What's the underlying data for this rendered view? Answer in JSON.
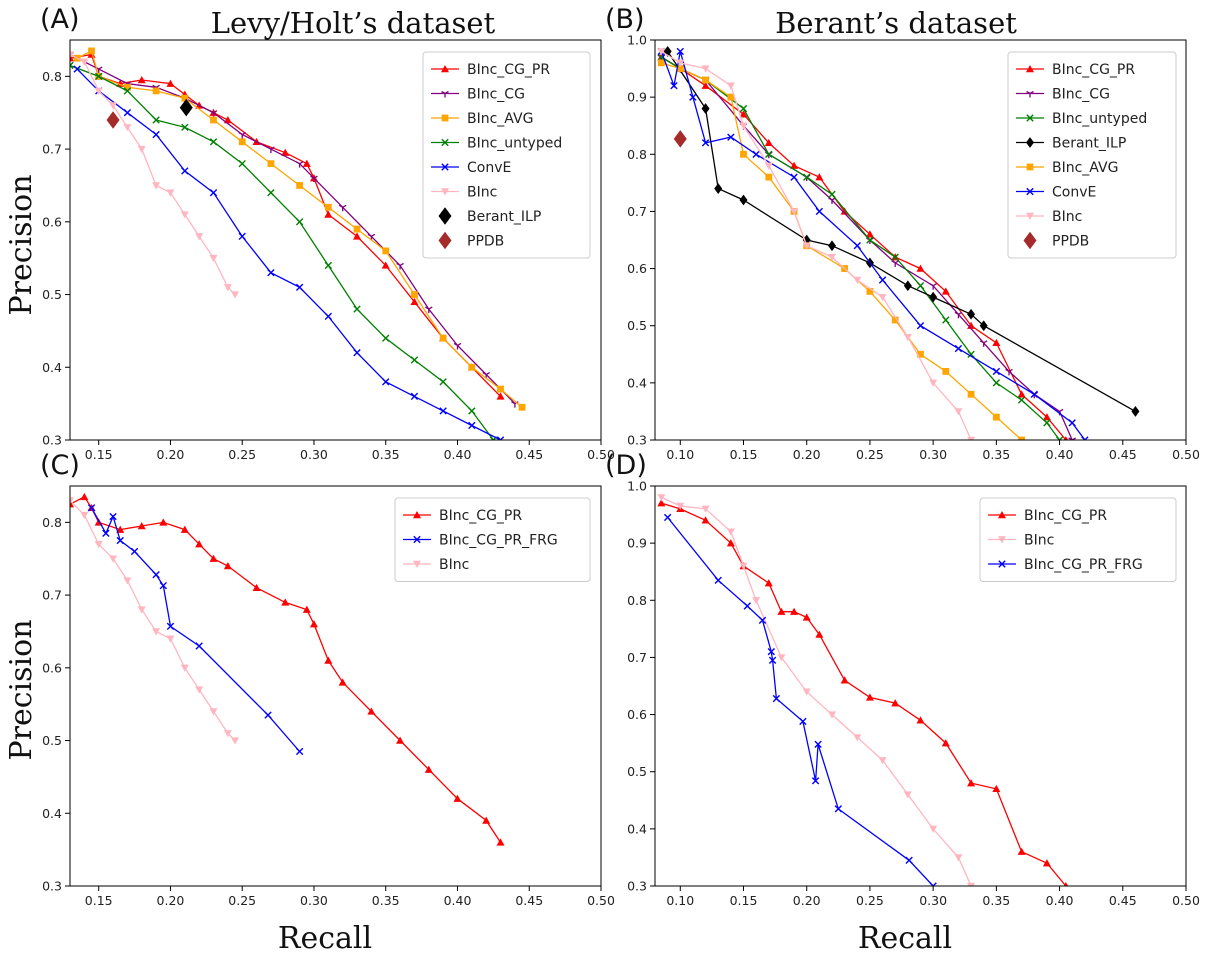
{
  "figure": {
    "panel_labels": [
      "(A)",
      "(B)",
      "(C)",
      "(D)"
    ],
    "column_titles": [
      "Levy/Holt’s dataset",
      "Berant’s dataset"
    ],
    "xlabel": "Recall",
    "ylabel": "Precision"
  },
  "chart_data": [
    {
      "type": "line",
      "panel": "A",
      "title": "Levy/Holt’s dataset",
      "xlabel": "",
      "ylabel": "Precision",
      "xlim": [
        0.13,
        0.5
      ],
      "ylim": [
        0.3,
        0.85
      ],
      "xticks": [
        "0.15",
        "0.20",
        "0.25",
        "0.30",
        "0.35",
        "0.40",
        "0.45",
        "0.50"
      ],
      "yticks": [
        "0.3",
        "0.4",
        "0.5",
        "0.6",
        "0.7",
        "0.8"
      ],
      "legend_position": "top-right",
      "series": [
        {
          "name": "BInc_CG_PR",
          "color": "#ff0000",
          "marker": "triangle-up",
          "x": [
            0.13,
            0.145,
            0.15,
            0.165,
            0.18,
            0.2,
            0.21,
            0.22,
            0.23,
            0.24,
            0.26,
            0.28,
            0.295,
            0.3,
            0.31,
            0.33,
            0.35,
            0.37,
            0.39,
            0.41,
            0.43
          ],
          "y": [
            0.825,
            0.83,
            0.8,
            0.79,
            0.795,
            0.79,
            0.775,
            0.76,
            0.75,
            0.74,
            0.71,
            0.695,
            0.68,
            0.66,
            0.61,
            0.58,
            0.54,
            0.49,
            0.44,
            0.4,
            0.36
          ]
        },
        {
          "name": "BInc_CG",
          "color": "#800080",
          "marker": "tri-down",
          "x": [
            0.13,
            0.15,
            0.17,
            0.19,
            0.21,
            0.23,
            0.25,
            0.27,
            0.29,
            0.3,
            0.32,
            0.34,
            0.36,
            0.38,
            0.4,
            0.42,
            0.44
          ],
          "y": [
            0.83,
            0.81,
            0.79,
            0.785,
            0.77,
            0.75,
            0.72,
            0.7,
            0.68,
            0.66,
            0.62,
            0.58,
            0.54,
            0.48,
            0.43,
            0.39,
            0.35
          ]
        },
        {
          "name": "BInc_AVG",
          "color": "#ffa500",
          "marker": "square",
          "x": [
            0.135,
            0.145,
            0.15,
            0.17,
            0.19,
            0.21,
            0.23,
            0.25,
            0.27,
            0.29,
            0.31,
            0.33,
            0.35,
            0.37,
            0.39,
            0.41,
            0.43,
            0.445
          ],
          "y": [
            0.825,
            0.835,
            0.8,
            0.785,
            0.78,
            0.77,
            0.74,
            0.71,
            0.68,
            0.65,
            0.62,
            0.59,
            0.56,
            0.5,
            0.44,
            0.4,
            0.37,
            0.345
          ]
        },
        {
          "name": "BInc_untyped",
          "color": "#008000",
          "marker": "x",
          "x": [
            0.13,
            0.15,
            0.17,
            0.19,
            0.21,
            0.23,
            0.25,
            0.27,
            0.29,
            0.31,
            0.33,
            0.35,
            0.37,
            0.39,
            0.41,
            0.425
          ],
          "y": [
            0.815,
            0.8,
            0.78,
            0.74,
            0.73,
            0.71,
            0.68,
            0.64,
            0.6,
            0.54,
            0.48,
            0.44,
            0.41,
            0.38,
            0.34,
            0.3
          ]
        },
        {
          "name": "ConvE",
          "color": "#0000ff",
          "marker": "x",
          "x": [
            0.135,
            0.15,
            0.17,
            0.19,
            0.21,
            0.23,
            0.25,
            0.27,
            0.29,
            0.31,
            0.33,
            0.35,
            0.37,
            0.39,
            0.41,
            0.43
          ],
          "y": [
            0.81,
            0.78,
            0.75,
            0.72,
            0.67,
            0.64,
            0.58,
            0.53,
            0.51,
            0.47,
            0.42,
            0.38,
            0.36,
            0.34,
            0.32,
            0.3
          ]
        },
        {
          "name": "BInc",
          "color": "#ffb6c1",
          "marker": "triangle-down",
          "x": [
            0.13,
            0.14,
            0.15,
            0.16,
            0.17,
            0.18,
            0.19,
            0.2,
            0.21,
            0.22,
            0.23,
            0.24,
            0.245
          ],
          "y": [
            0.83,
            0.82,
            0.78,
            0.76,
            0.73,
            0.7,
            0.65,
            0.64,
            0.61,
            0.58,
            0.55,
            0.51,
            0.5
          ]
        },
        {
          "name": "Berant_ILP",
          "color": "#000000",
          "marker": "diamond",
          "x": [
            0.211
          ],
          "y": [
            0.757
          ]
        },
        {
          "name": "PPDB",
          "color": "#a52a2a",
          "marker": "diamond",
          "x": [
            0.16
          ],
          "y": [
            0.74
          ]
        }
      ]
    },
    {
      "type": "line",
      "panel": "B",
      "title": "Berant’s dataset",
      "xlabel": "",
      "ylabel": "",
      "xlim": [
        0.08,
        0.5
      ],
      "ylim": [
        0.3,
        1.0
      ],
      "xticks": [
        "0.10",
        "0.15",
        "0.20",
        "0.25",
        "0.30",
        "0.35",
        "0.40",
        "0.45",
        "0.50"
      ],
      "yticks": [
        "0.3",
        "0.4",
        "0.5",
        "0.6",
        "0.7",
        "0.8",
        "0.9",
        "1.0"
      ],
      "legend_position": "top-right",
      "series": [
        {
          "name": "BInc_CG_PR",
          "color": "#ff0000",
          "marker": "triangle-up",
          "x": [
            0.085,
            0.1,
            0.12,
            0.15,
            0.17,
            0.19,
            0.21,
            0.23,
            0.25,
            0.27,
            0.29,
            0.31,
            0.33,
            0.35,
            0.37,
            0.39,
            0.405
          ],
          "y": [
            0.97,
            0.95,
            0.92,
            0.87,
            0.82,
            0.78,
            0.76,
            0.7,
            0.66,
            0.62,
            0.6,
            0.56,
            0.5,
            0.47,
            0.38,
            0.34,
            0.3
          ]
        },
        {
          "name": "BInc_CG",
          "color": "#800080",
          "marker": "tri-down",
          "x": [
            0.085,
            0.1,
            0.12,
            0.15,
            0.17,
            0.2,
            0.22,
            0.25,
            0.27,
            0.3,
            0.32,
            0.34,
            0.36,
            0.38,
            0.4,
            0.41
          ],
          "y": [
            0.97,
            0.95,
            0.93,
            0.85,
            0.8,
            0.76,
            0.72,
            0.65,
            0.61,
            0.57,
            0.52,
            0.47,
            0.42,
            0.38,
            0.35,
            0.3
          ]
        },
        {
          "name": "BInc_untyped",
          "color": "#008000",
          "marker": "x",
          "x": [
            0.085,
            0.1,
            0.12,
            0.15,
            0.17,
            0.2,
            0.22,
            0.25,
            0.27,
            0.29,
            0.31,
            0.33,
            0.35,
            0.37,
            0.39,
            0.4
          ],
          "y": [
            0.97,
            0.95,
            0.93,
            0.88,
            0.8,
            0.76,
            0.73,
            0.65,
            0.62,
            0.57,
            0.51,
            0.45,
            0.4,
            0.37,
            0.33,
            0.3
          ]
        },
        {
          "name": "Berant_ILP",
          "color": "#000000",
          "marker": "diamond",
          "x": [
            0.09,
            0.12,
            0.13,
            0.15,
            0.2,
            0.22,
            0.25,
            0.28,
            0.3,
            0.33,
            0.34,
            0.46
          ],
          "y": [
            0.98,
            0.88,
            0.74,
            0.72,
            0.65,
            0.64,
            0.61,
            0.57,
            0.55,
            0.52,
            0.5,
            0.35
          ]
        },
        {
          "name": "BInc_AVG",
          "color": "#ffa500",
          "marker": "square",
          "x": [
            0.085,
            0.1,
            0.12,
            0.14,
            0.15,
            0.17,
            0.19,
            0.2,
            0.23,
            0.25,
            0.27,
            0.29,
            0.31,
            0.33,
            0.35,
            0.37
          ],
          "y": [
            0.96,
            0.95,
            0.93,
            0.9,
            0.8,
            0.76,
            0.7,
            0.64,
            0.6,
            0.56,
            0.51,
            0.45,
            0.42,
            0.38,
            0.34,
            0.3
          ]
        },
        {
          "name": "ConvE",
          "color": "#0000ff",
          "marker": "x",
          "x": [
            0.085,
            0.095,
            0.1,
            0.11,
            0.12,
            0.14,
            0.16,
            0.19,
            0.21,
            0.24,
            0.26,
            0.29,
            0.32,
            0.35,
            0.38,
            0.41,
            0.42
          ],
          "y": [
            0.98,
            0.92,
            0.98,
            0.9,
            0.82,
            0.83,
            0.8,
            0.76,
            0.7,
            0.64,
            0.58,
            0.5,
            0.46,
            0.42,
            0.38,
            0.33,
            0.3
          ]
        },
        {
          "name": "BInc",
          "color": "#ffb6c1",
          "marker": "triangle-down",
          "x": [
            0.085,
            0.1,
            0.12,
            0.14,
            0.15,
            0.17,
            0.19,
            0.2,
            0.22,
            0.24,
            0.26,
            0.28,
            0.3,
            0.32,
            0.33
          ],
          "y": [
            0.98,
            0.96,
            0.95,
            0.92,
            0.85,
            0.78,
            0.7,
            0.64,
            0.62,
            0.58,
            0.55,
            0.48,
            0.4,
            0.35,
            0.3
          ]
        },
        {
          "name": "PPDB",
          "color": "#a52a2a",
          "marker": "diamond",
          "x": [
            0.1
          ],
          "y": [
            0.827
          ]
        }
      ]
    },
    {
      "type": "line",
      "panel": "C",
      "title": "",
      "xlabel": "Recall",
      "ylabel": "Precision",
      "xlim": [
        0.13,
        0.5
      ],
      "ylim": [
        0.3,
        0.85
      ],
      "xticks": [
        "0.15",
        "0.20",
        "0.25",
        "0.30",
        "0.35",
        "0.40",
        "0.45",
        "0.50"
      ],
      "yticks": [
        "0.3",
        "0.4",
        "0.5",
        "0.6",
        "0.7",
        "0.8"
      ],
      "legend_position": "top-right",
      "series": [
        {
          "name": "BInc_CG_PR",
          "color": "#ff0000",
          "marker": "triangle-up",
          "x": [
            0.13,
            0.14,
            0.145,
            0.15,
            0.165,
            0.18,
            0.195,
            0.21,
            0.22,
            0.23,
            0.24,
            0.26,
            0.28,
            0.295,
            0.3,
            0.31,
            0.32,
            0.34,
            0.36,
            0.38,
            0.4,
            0.42,
            0.43
          ],
          "y": [
            0.825,
            0.835,
            0.82,
            0.8,
            0.79,
            0.795,
            0.8,
            0.79,
            0.77,
            0.75,
            0.74,
            0.71,
            0.69,
            0.68,
            0.66,
            0.61,
            0.58,
            0.54,
            0.5,
            0.46,
            0.42,
            0.39,
            0.36
          ]
        },
        {
          "name": "BInc_CG_PR_FRG",
          "color": "#0000ff",
          "marker": "x",
          "x": [
            0.145,
            0.155,
            0.16,
            0.165,
            0.175,
            0.19,
            0.195,
            0.2,
            0.22,
            0.268,
            0.29
          ],
          "y": [
            0.82,
            0.785,
            0.808,
            0.775,
            0.76,
            0.728,
            0.713,
            0.657,
            0.63,
            0.535,
            0.485
          ]
        },
        {
          "name": "BInc",
          "color": "#ffb6c1",
          "marker": "triangle-down",
          "x": [
            0.13,
            0.14,
            0.15,
            0.16,
            0.17,
            0.18,
            0.19,
            0.2,
            0.21,
            0.22,
            0.23,
            0.24,
            0.245
          ],
          "y": [
            0.83,
            0.81,
            0.77,
            0.75,
            0.72,
            0.68,
            0.65,
            0.64,
            0.6,
            0.57,
            0.54,
            0.51,
            0.5
          ]
        }
      ]
    },
    {
      "type": "line",
      "panel": "D",
      "title": "",
      "xlabel": "Recall",
      "ylabel": "",
      "xlim": [
        0.08,
        0.5
      ],
      "ylim": [
        0.3,
        1.0
      ],
      "xticks": [
        "0.10",
        "0.15",
        "0.20",
        "0.25",
        "0.30",
        "0.35",
        "0.40",
        "0.45",
        "0.50"
      ],
      "yticks": [
        "0.3",
        "0.4",
        "0.5",
        "0.6",
        "0.7",
        "0.8",
        "0.9",
        "1.0"
      ],
      "legend_position": "top-right",
      "series": [
        {
          "name": "BInc_CG_PR",
          "color": "#ff0000",
          "marker": "triangle-up",
          "x": [
            0.085,
            0.1,
            0.12,
            0.14,
            0.15,
            0.17,
            0.18,
            0.19,
            0.2,
            0.21,
            0.23,
            0.25,
            0.27,
            0.29,
            0.31,
            0.33,
            0.35,
            0.37,
            0.39,
            0.405
          ],
          "y": [
            0.97,
            0.96,
            0.94,
            0.9,
            0.86,
            0.83,
            0.78,
            0.78,
            0.77,
            0.74,
            0.66,
            0.63,
            0.62,
            0.59,
            0.55,
            0.48,
            0.47,
            0.36,
            0.34,
            0.3
          ]
        },
        {
          "name": "BInc",
          "color": "#ffb6c1",
          "marker": "triangle-down",
          "x": [
            0.085,
            0.1,
            0.12,
            0.14,
            0.15,
            0.16,
            0.18,
            0.2,
            0.22,
            0.24,
            0.26,
            0.28,
            0.3,
            0.32,
            0.33
          ],
          "y": [
            0.98,
            0.965,
            0.96,
            0.92,
            0.86,
            0.8,
            0.7,
            0.64,
            0.6,
            0.56,
            0.52,
            0.46,
            0.4,
            0.35,
            0.3
          ]
        },
        {
          "name": "BInc_CG_PR_FRG",
          "color": "#0000ff",
          "marker": "x",
          "x": [
            0.09,
            0.13,
            0.153,
            0.165,
            0.172,
            0.173,
            0.176,
            0.197,
            0.207,
            0.209,
            0.225,
            0.281,
            0.3
          ],
          "y": [
            0.945,
            0.835,
            0.79,
            0.765,
            0.71,
            0.695,
            0.628,
            0.588,
            0.484,
            0.548,
            0.435,
            0.345,
            0.3
          ]
        }
      ]
    }
  ]
}
